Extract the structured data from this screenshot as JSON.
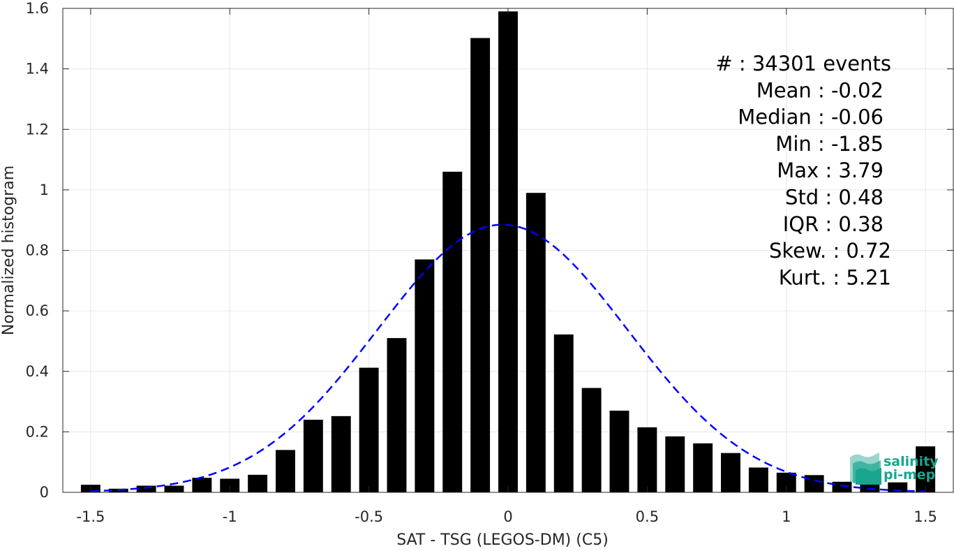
{
  "chart_data": {
    "type": "bar",
    "xlabel": "SAT - TSG (LEGOS-DM) (C5)",
    "ylabel": "Normalized histogram",
    "xlim": [
      -1.6,
      1.6
    ],
    "ylim": [
      0,
      1.6
    ],
    "xticks": [
      -1.5,
      -1,
      -0.5,
      0,
      0.5,
      1,
      1.5
    ],
    "xtick_labels": [
      "-1.5",
      "-1",
      "-0.5",
      "0",
      "0.5",
      "1",
      "1.5"
    ],
    "yticks": [
      0,
      0.2,
      0.4,
      0.6,
      0.8,
      1,
      1.2,
      1.4,
      1.6
    ],
    "ytick_labels": [
      "0",
      "0.2",
      "0.4",
      "0.6",
      "0.8",
      "1",
      "1.2",
      "1.4",
      "1.6"
    ],
    "grid": true,
    "bar_width": 0.07,
    "bars": {
      "x": [
        -1.5,
        -1.4,
        -1.3,
        -1.2,
        -1.1,
        -1.0,
        -0.9,
        -0.8,
        -0.7,
        -0.6,
        -0.5,
        -0.4,
        -0.3,
        -0.2,
        -0.1,
        0.0,
        0.1,
        0.2,
        0.3,
        0.4,
        0.5,
        0.6,
        0.7,
        0.8,
        0.9,
        1.0,
        1.1,
        1.2,
        1.3,
        1.4,
        1.5
      ],
      "values": [
        0.025,
        0.012,
        0.022,
        0.022,
        0.048,
        0.045,
        0.058,
        0.14,
        0.24,
        0.252,
        0.412,
        0.51,
        0.77,
        1.06,
        1.502,
        1.59,
        0.99,
        0.522,
        0.345,
        0.27,
        0.215,
        0.185,
        0.162,
        0.13,
        0.082,
        0.065,
        0.057,
        0.035,
        0.04,
        0.033,
        0.152
      ],
      "color": "#000000"
    },
    "fit_curve": {
      "style": "dashed",
      "color": "#0000ff",
      "mean": -0.02,
      "std": 0.45,
      "peak": 0.885,
      "x_range": [
        -1.5,
        1.5
      ]
    },
    "stats_lines": [
      "#  : 34301 events",
      "Mean : -0.02",
      "Median : -0.06",
      "Min : -1.85",
      "Max : 3.79",
      "Std : 0.48",
      "IQR : 0.38",
      "Skew. : 0.72",
      "Kurt. : 5.21"
    ]
  },
  "logo": {
    "line1": "salinity",
    "line2": "pi-mep",
    "color": "#1aa58f"
  }
}
